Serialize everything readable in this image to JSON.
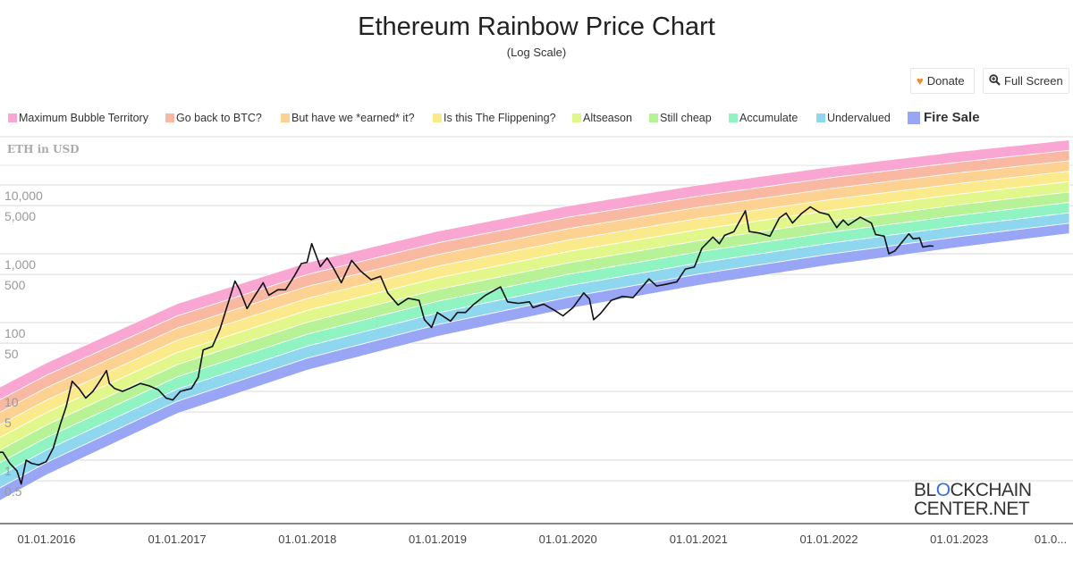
{
  "header": {
    "title": "Ethereum Rainbow Price Chart",
    "subtitle": "(Log Scale)",
    "donate_label": "Donate",
    "fullscreen_label": "Full Screen",
    "donate_icon": "heart-icon",
    "fullscreen_icon": "zoom-in-icon",
    "donate_icon_color": "#f08a24"
  },
  "logo": {
    "line1_a": "BL",
    "line1_o": "O",
    "line1_b": "CKCHAIN",
    "line2": "CENTER.NET"
  },
  "chart_data": {
    "type": "line",
    "title": "Ethereum Rainbow Price Chart",
    "subtitle": "(Log Scale)",
    "ylabel": "ETH in USD",
    "xlabel": "",
    "yscale": "log",
    "ylim": [
      0.3,
      60000
    ],
    "xlim": [
      "2015-07-30",
      "2023-11-06"
    ],
    "grid": true,
    "legend_position": "top",
    "y_ticks": [
      {
        "value": 10000,
        "label": "10,000"
      },
      {
        "value": 5000,
        "label": "5,000"
      },
      {
        "value": 1000,
        "label": "1,000"
      },
      {
        "value": 500,
        "label": "500"
      },
      {
        "value": 100,
        "label": "100"
      },
      {
        "value": 50,
        "label": "50"
      },
      {
        "value": 10,
        "label": "10"
      },
      {
        "value": 5,
        "label": "5"
      },
      {
        "value": 1,
        "label": "1"
      },
      {
        "value": 0.5,
        "label": "0.5"
      }
    ],
    "x_ticks": [
      {
        "date": "2016-01-01",
        "label": "01.01.2016"
      },
      {
        "date": "2017-01-01",
        "label": "01.01.2017"
      },
      {
        "date": "2018-01-01",
        "label": "01.01.2018"
      },
      {
        "date": "2019-01-01",
        "label": "01.01.2019"
      },
      {
        "date": "2020-01-01",
        "label": "01.01.2020"
      },
      {
        "date": "2021-01-01",
        "label": "01.01.2021"
      },
      {
        "date": "2022-01-01",
        "label": "01.01.2022"
      },
      {
        "date": "2023-01-01",
        "label": "01.01.2023"
      },
      {
        "date": "2024-01-01",
        "label": "01.0..."
      }
    ],
    "bands": [
      {
        "name": "Maximum Bubble Territory",
        "color": "#f9a6d2"
      },
      {
        "name": "Go back to BTC?",
        "color": "#f9b8a2"
      },
      {
        "name": "But have we *earned* it?",
        "color": "#fcd191"
      },
      {
        "name": "Is this The Flippening?",
        "color": "#fbea8c"
      },
      {
        "name": "Altseason",
        "color": "#e1f78c"
      },
      {
        "name": "Still cheap",
        "color": "#b7f396"
      },
      {
        "name": "Accumulate",
        "color": "#8ff3c2"
      },
      {
        "name": "Undervalued",
        "color": "#8fd7ef"
      },
      {
        "name": "Fire Sale",
        "color": "#99a6f6"
      }
    ],
    "rainbow_envelope": {
      "dates": [
        "2015-07-30",
        "2016-01-01",
        "2017-01-01",
        "2018-01-01",
        "2019-01-01",
        "2020-01-01",
        "2021-01-01",
        "2022-01-01",
        "2023-01-01",
        "2023-11-06"
      ],
      "floor": [
        0.22,
        0.61,
        4.75,
        20.4,
        63,
        159,
        348,
        682,
        1242,
        1960
      ],
      "ceiling": [
        9.9,
        26,
        188,
        745,
        2130,
        4970,
        10000,
        18200,
        30600,
        45200
      ]
    },
    "series": [
      {
        "color": "#111111",
        "points": [
          [
            "2015-07-30",
            2.8
          ],
          [
            "2015-08-15",
            1.3
          ],
          [
            "2015-09-01",
            1.3
          ],
          [
            "2015-09-20",
            0.9
          ],
          [
            "2015-10-10",
            0.7
          ],
          [
            "2015-10-22",
            0.45
          ],
          [
            "2015-11-05",
            1.0
          ],
          [
            "2015-11-20",
            0.9
          ],
          [
            "2015-12-10",
            0.85
          ],
          [
            "2015-12-31",
            0.95
          ],
          [
            "2016-01-20",
            1.5
          ],
          [
            "2016-02-10",
            3.5
          ],
          [
            "2016-02-25",
            6
          ],
          [
            "2016-03-13",
            14
          ],
          [
            "2016-04-01",
            11
          ],
          [
            "2016-04-20",
            8
          ],
          [
            "2016-05-10",
            10
          ],
          [
            "2016-05-25",
            13
          ],
          [
            "2016-06-17",
            20
          ],
          [
            "2016-06-25",
            13
          ],
          [
            "2016-07-10",
            11
          ],
          [
            "2016-08-01",
            10
          ],
          [
            "2016-08-20",
            11
          ],
          [
            "2016-09-20",
            13
          ],
          [
            "2016-10-15",
            12
          ],
          [
            "2016-11-10",
            10.5
          ],
          [
            "2016-12-01",
            8
          ],
          [
            "2016-12-20",
            7.5
          ],
          [
            "2017-01-10",
            10
          ],
          [
            "2017-02-10",
            11
          ],
          [
            "2017-03-01",
            16
          ],
          [
            "2017-03-15",
            40
          ],
          [
            "2017-04-10",
            45
          ],
          [
            "2017-05-01",
            80
          ],
          [
            "2017-05-25",
            200
          ],
          [
            "2017-06-12",
            400
          ],
          [
            "2017-06-25",
            300
          ],
          [
            "2017-07-16",
            160
          ],
          [
            "2017-08-01",
            220
          ],
          [
            "2017-08-30",
            380
          ],
          [
            "2017-09-15",
            250
          ],
          [
            "2017-10-10",
            300
          ],
          [
            "2017-11-01",
            300
          ],
          [
            "2017-11-25",
            470
          ],
          [
            "2017-12-15",
            720
          ],
          [
            "2017-12-31",
            750
          ],
          [
            "2018-01-13",
            1400
          ],
          [
            "2018-02-06",
            650
          ],
          [
            "2018-02-25",
            870
          ],
          [
            "2018-03-15",
            620
          ],
          [
            "2018-04-06",
            380
          ],
          [
            "2018-05-05",
            800
          ],
          [
            "2018-05-30",
            560
          ],
          [
            "2018-06-28",
            420
          ],
          [
            "2018-07-25",
            470
          ],
          [
            "2018-08-14",
            270
          ],
          [
            "2018-09-12",
            180
          ],
          [
            "2018-10-10",
            225
          ],
          [
            "2018-11-10",
            210
          ],
          [
            "2018-11-25",
            110
          ],
          [
            "2018-12-15",
            85
          ],
          [
            "2018-12-31",
            140
          ],
          [
            "2019-01-20",
            120
          ],
          [
            "2019-02-06",
            105
          ],
          [
            "2019-02-25",
            140
          ],
          [
            "2019-03-20",
            140
          ],
          [
            "2019-04-10",
            180
          ],
          [
            "2019-05-15",
            250
          ],
          [
            "2019-06-26",
            330
          ],
          [
            "2019-07-16",
            200
          ],
          [
            "2019-08-15",
            190
          ],
          [
            "2019-09-15",
            200
          ],
          [
            "2019-09-25",
            165
          ],
          [
            "2019-10-25",
            185
          ],
          [
            "2019-11-25",
            150
          ],
          [
            "2019-12-18",
            125
          ],
          [
            "2020-01-15",
            165
          ],
          [
            "2020-02-14",
            270
          ],
          [
            "2020-03-01",
            220
          ],
          [
            "2020-03-13",
            110
          ],
          [
            "2020-04-01",
            135
          ],
          [
            "2020-05-01",
            210
          ],
          [
            "2020-06-01",
            240
          ],
          [
            "2020-07-01",
            230
          ],
          [
            "2020-07-25",
            320
          ],
          [
            "2020-08-15",
            430
          ],
          [
            "2020-09-05",
            340
          ],
          [
            "2020-10-01",
            360
          ],
          [
            "2020-11-01",
            390
          ],
          [
            "2020-11-25",
            600
          ],
          [
            "2020-12-20",
            640
          ],
          [
            "2021-01-10",
            1200
          ],
          [
            "2021-02-10",
            1750
          ],
          [
            "2021-02-28",
            1400
          ],
          [
            "2021-03-15",
            1850
          ],
          [
            "2021-04-10",
            2100
          ],
          [
            "2021-05-12",
            4200
          ],
          [
            "2021-05-23",
            2100
          ],
          [
            "2021-06-20",
            2000
          ],
          [
            "2021-07-20",
            1800
          ],
          [
            "2021-08-15",
            3300
          ],
          [
            "2021-09-03",
            3900
          ],
          [
            "2021-09-21",
            2800
          ],
          [
            "2021-10-15",
            3800
          ],
          [
            "2021-11-10",
            4800
          ],
          [
            "2021-12-05",
            4000
          ],
          [
            "2021-12-31",
            3700
          ],
          [
            "2022-01-23",
            2400
          ],
          [
            "2022-02-10",
            3100
          ],
          [
            "2022-02-24",
            2600
          ],
          [
            "2022-03-30",
            3400
          ],
          [
            "2022-04-30",
            2800
          ],
          [
            "2022-05-12",
            1900
          ],
          [
            "2022-06-05",
            1800
          ],
          [
            "2022-06-18",
            1000
          ],
          [
            "2022-07-05",
            1100
          ],
          [
            "2022-08-13",
            1950
          ],
          [
            "2022-08-25",
            1650
          ],
          [
            "2022-09-12",
            1700
          ],
          [
            "2022-09-21",
            1250
          ],
          [
            "2022-10-10",
            1300
          ],
          [
            "2022-10-20",
            1290
          ]
        ]
      }
    ]
  }
}
